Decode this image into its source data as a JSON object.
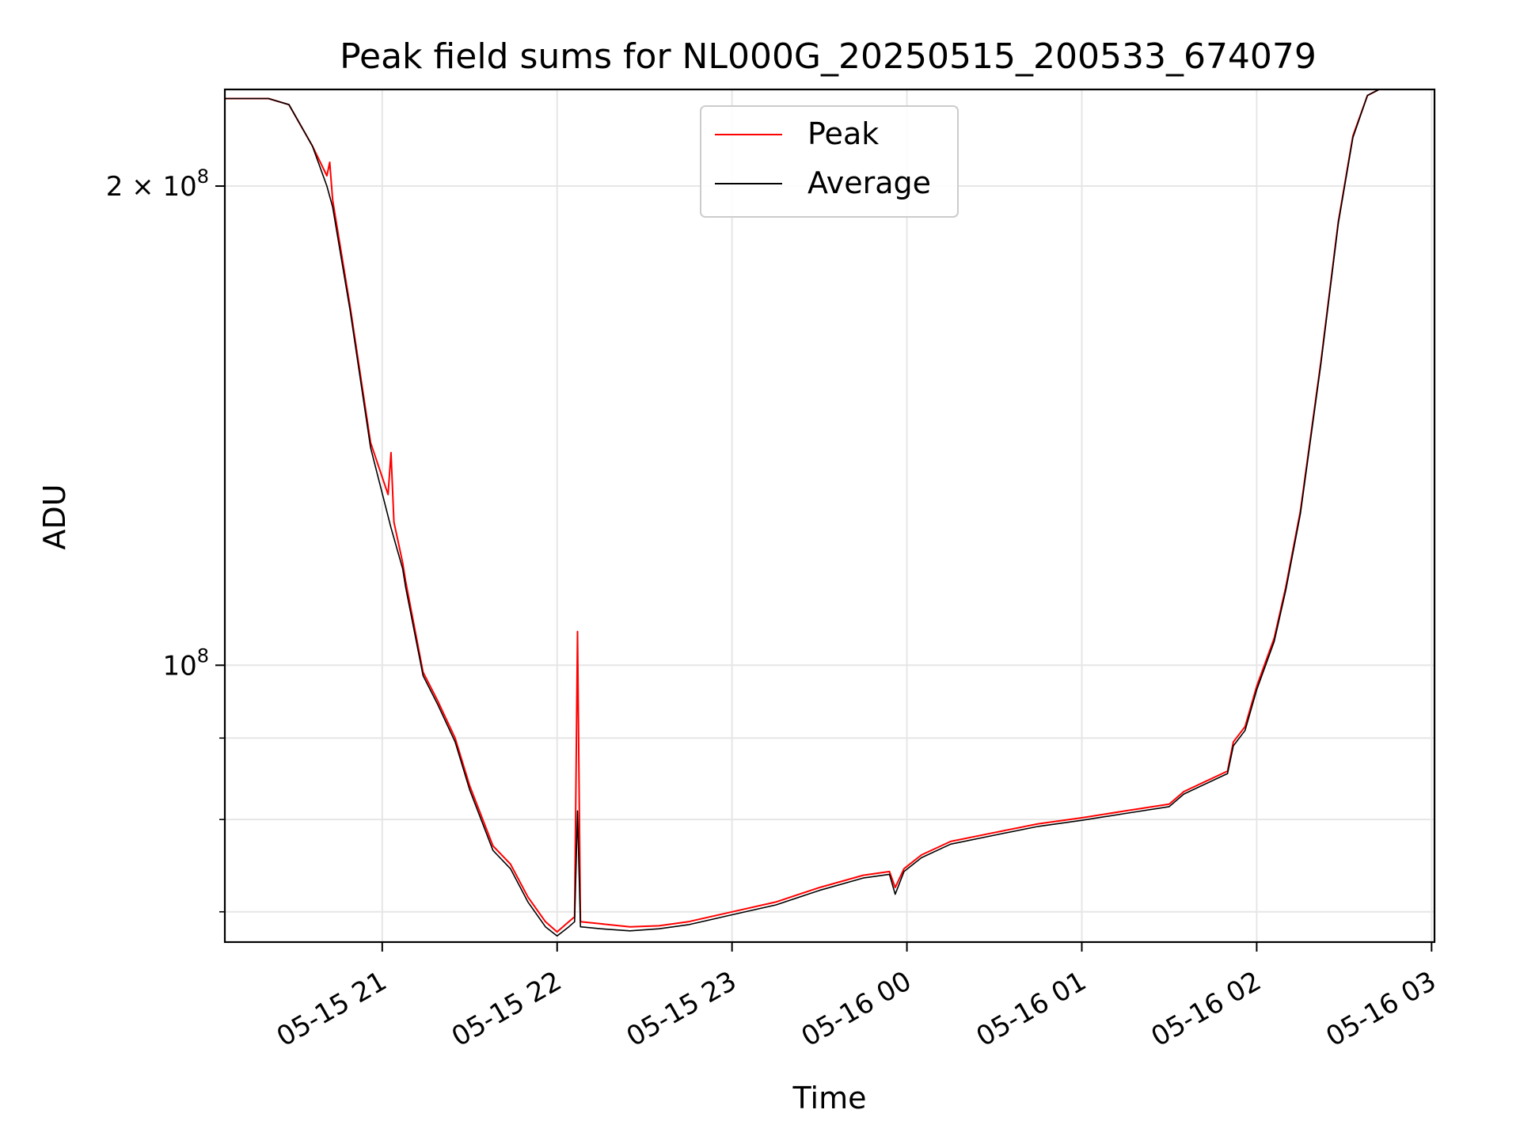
{
  "chart_data": {
    "type": "line",
    "title": "Peak field sums for NL000G_20250515_200533_674079",
    "xlabel": "Time",
    "ylabel": "ADU",
    "yscale": "log",
    "xlim": [
      "2025-05-15T20:06",
      "2025-05-16T03:01"
    ],
    "ylim": [
      67000000,
      230000000
    ],
    "grid": true,
    "legend_placement": "upper center",
    "x_ticks": [
      {
        "t": "2025-05-15T21:00",
        "label": "05-15 21"
      },
      {
        "t": "2025-05-15T22:00",
        "label": "05-15 22"
      },
      {
        "t": "2025-05-15T23:00",
        "label": "05-15 23"
      },
      {
        "t": "2025-05-16T00:00",
        "label": "05-16 00"
      },
      {
        "t": "2025-05-16T01:00",
        "label": "05-16 01"
      },
      {
        "t": "2025-05-16T02:00",
        "label": "05-16 02"
      },
      {
        "t": "2025-05-16T03:00",
        "label": "05-16 03"
      }
    ],
    "y_major_ticks": [
      {
        "v": 100000000,
        "base": "10",
        "exp": "8",
        "mant": ""
      },
      {
        "v": 200000000,
        "base": "10",
        "exp": "8",
        "mant": "2 × "
      }
    ],
    "y_minor_ticks": [
      70000000,
      80000000,
      90000000
    ],
    "series": [
      {
        "name": "Peak",
        "color": "#ff0000",
        "points": [
          [
            "2025-05-15T20:06",
            227000000
          ],
          [
            "2025-05-15T20:21",
            227000000
          ],
          [
            "2025-05-15T20:28",
            225000000
          ],
          [
            "2025-05-15T20:36",
            212000000
          ],
          [
            "2025-05-15T20:41",
            203000000
          ],
          [
            "2025-05-15T20:42",
            207000000
          ],
          [
            "2025-05-15T20:43",
            196000000
          ],
          [
            "2025-05-15T20:49",
            168000000
          ],
          [
            "2025-05-15T20:56",
            138000000
          ],
          [
            "2025-05-15T21:02",
            128000000
          ],
          [
            "2025-05-15T21:03",
            136000000
          ],
          [
            "2025-05-15T21:04",
            123000000
          ],
          [
            "2025-05-15T21:07",
            116000000
          ],
          [
            "2025-05-15T21:08",
            113000000
          ],
          [
            "2025-05-15T21:14",
            99000000
          ],
          [
            "2025-05-15T21:19",
            95000000
          ],
          [
            "2025-05-15T21:25",
            90000000
          ],
          [
            "2025-05-15T21:30",
            84000000
          ],
          [
            "2025-05-15T21:38",
            77000000
          ],
          [
            "2025-05-15T21:44",
            75000000
          ],
          [
            "2025-05-15T21:50",
            71500000
          ],
          [
            "2025-05-15T21:56",
            69000000
          ],
          [
            "2025-05-15T22:00",
            68000000
          ],
          [
            "2025-05-15T22:04",
            69000000
          ],
          [
            "2025-05-15T22:06",
            69500000
          ],
          [
            "2025-05-15T22:07",
            105000000
          ],
          [
            "2025-05-15T22:08",
            69000000
          ],
          [
            "2025-05-15T22:15",
            68800000
          ],
          [
            "2025-05-15T22:25",
            68500000
          ],
          [
            "2025-05-15T22:35",
            68600000
          ],
          [
            "2025-05-15T22:45",
            69000000
          ],
          [
            "2025-05-15T23:00",
            70000000
          ],
          [
            "2025-05-15T23:15",
            71000000
          ],
          [
            "2025-05-15T23:30",
            72500000
          ],
          [
            "2025-05-15T23:45",
            73800000
          ],
          [
            "2025-05-15T23:54",
            74200000
          ],
          [
            "2025-05-15T23:56",
            72500000
          ],
          [
            "2025-05-15T23:59",
            74500000
          ],
          [
            "2025-05-16T00:05",
            76000000
          ],
          [
            "2025-05-16T00:15",
            77500000
          ],
          [
            "2025-05-16T00:30",
            78500000
          ],
          [
            "2025-05-16T00:45",
            79500000
          ],
          [
            "2025-05-16T01:00",
            80200000
          ],
          [
            "2025-05-16T01:15",
            81000000
          ],
          [
            "2025-05-16T01:30",
            81800000
          ],
          [
            "2025-05-16T01:35",
            83300000
          ],
          [
            "2025-05-16T01:50",
            85800000
          ],
          [
            "2025-05-16T01:52",
            89500000
          ],
          [
            "2025-05-16T01:56",
            91500000
          ],
          [
            "2025-05-16T02:00",
            97000000
          ],
          [
            "2025-05-16T02:06",
            104000000
          ],
          [
            "2025-05-16T02:10",
            112000000
          ],
          [
            "2025-05-16T02:15",
            125000000
          ],
          [
            "2025-05-16T02:22",
            155000000
          ],
          [
            "2025-05-16T02:28",
            190000000
          ],
          [
            "2025-05-16T02:33",
            215000000
          ],
          [
            "2025-05-16T02:38",
            228000000
          ],
          [
            "2025-05-16T02:42",
            230000000
          ]
        ]
      },
      {
        "name": "Average",
        "color": "#000000",
        "points": [
          [
            "2025-05-15T20:06",
            227000000
          ],
          [
            "2025-05-15T20:21",
            227000000
          ],
          [
            "2025-05-15T20:28",
            225000000
          ],
          [
            "2025-05-15T20:36",
            212000000
          ],
          [
            "2025-05-15T20:41",
            200000000
          ],
          [
            "2025-05-15T20:43",
            194000000
          ],
          [
            "2025-05-15T20:49",
            167000000
          ],
          [
            "2025-05-15T20:56",
            137000000
          ],
          [
            "2025-05-15T21:03",
            122000000
          ],
          [
            "2025-05-15T21:07",
            115000000
          ],
          [
            "2025-05-15T21:08",
            112000000
          ],
          [
            "2025-05-15T21:14",
            98500000
          ],
          [
            "2025-05-15T21:19",
            94500000
          ],
          [
            "2025-05-15T21:25",
            89500000
          ],
          [
            "2025-05-15T21:30",
            83500000
          ],
          [
            "2025-05-15T21:38",
            76500000
          ],
          [
            "2025-05-15T21:44",
            74500000
          ],
          [
            "2025-05-15T21:50",
            71000000
          ],
          [
            "2025-05-15T21:56",
            68500000
          ],
          [
            "2025-05-15T22:00",
            67600000
          ],
          [
            "2025-05-15T22:04",
            68500000
          ],
          [
            "2025-05-15T22:06",
            69000000
          ],
          [
            "2025-05-15T22:07",
            81000000
          ],
          [
            "2025-05-15T22:08",
            68500000
          ],
          [
            "2025-05-15T22:15",
            68300000
          ],
          [
            "2025-05-15T22:25",
            68100000
          ],
          [
            "2025-05-15T22:35",
            68300000
          ],
          [
            "2025-05-15T22:45",
            68700000
          ],
          [
            "2025-05-15T23:00",
            69700000
          ],
          [
            "2025-05-15T23:15",
            70700000
          ],
          [
            "2025-05-15T23:30",
            72200000
          ],
          [
            "2025-05-15T23:45",
            73500000
          ],
          [
            "2025-05-15T23:54",
            73900000
          ],
          [
            "2025-05-15T23:56",
            71800000
          ],
          [
            "2025-05-15T23:59",
            74200000
          ],
          [
            "2025-05-16T00:05",
            75700000
          ],
          [
            "2025-05-16T00:15",
            77200000
          ],
          [
            "2025-05-16T00:30",
            78200000
          ],
          [
            "2025-05-16T00:45",
            79200000
          ],
          [
            "2025-05-16T01:00",
            79900000
          ],
          [
            "2025-05-16T01:15",
            80700000
          ],
          [
            "2025-05-16T01:30",
            81500000
          ],
          [
            "2025-05-16T01:35",
            83000000
          ],
          [
            "2025-05-16T01:50",
            85500000
          ],
          [
            "2025-05-16T01:52",
            89000000
          ],
          [
            "2025-05-16T01:56",
            91000000
          ],
          [
            "2025-05-16T02:00",
            96500000
          ],
          [
            "2025-05-16T02:06",
            103500000
          ],
          [
            "2025-05-16T02:10",
            111500000
          ],
          [
            "2025-05-16T02:15",
            124500000
          ],
          [
            "2025-05-16T02:22",
            154500000
          ],
          [
            "2025-05-16T02:28",
            189500000
          ],
          [
            "2025-05-16T02:33",
            214500000
          ],
          [
            "2025-05-16T02:38",
            228000000
          ],
          [
            "2025-05-16T02:42",
            230000000
          ]
        ]
      }
    ]
  }
}
